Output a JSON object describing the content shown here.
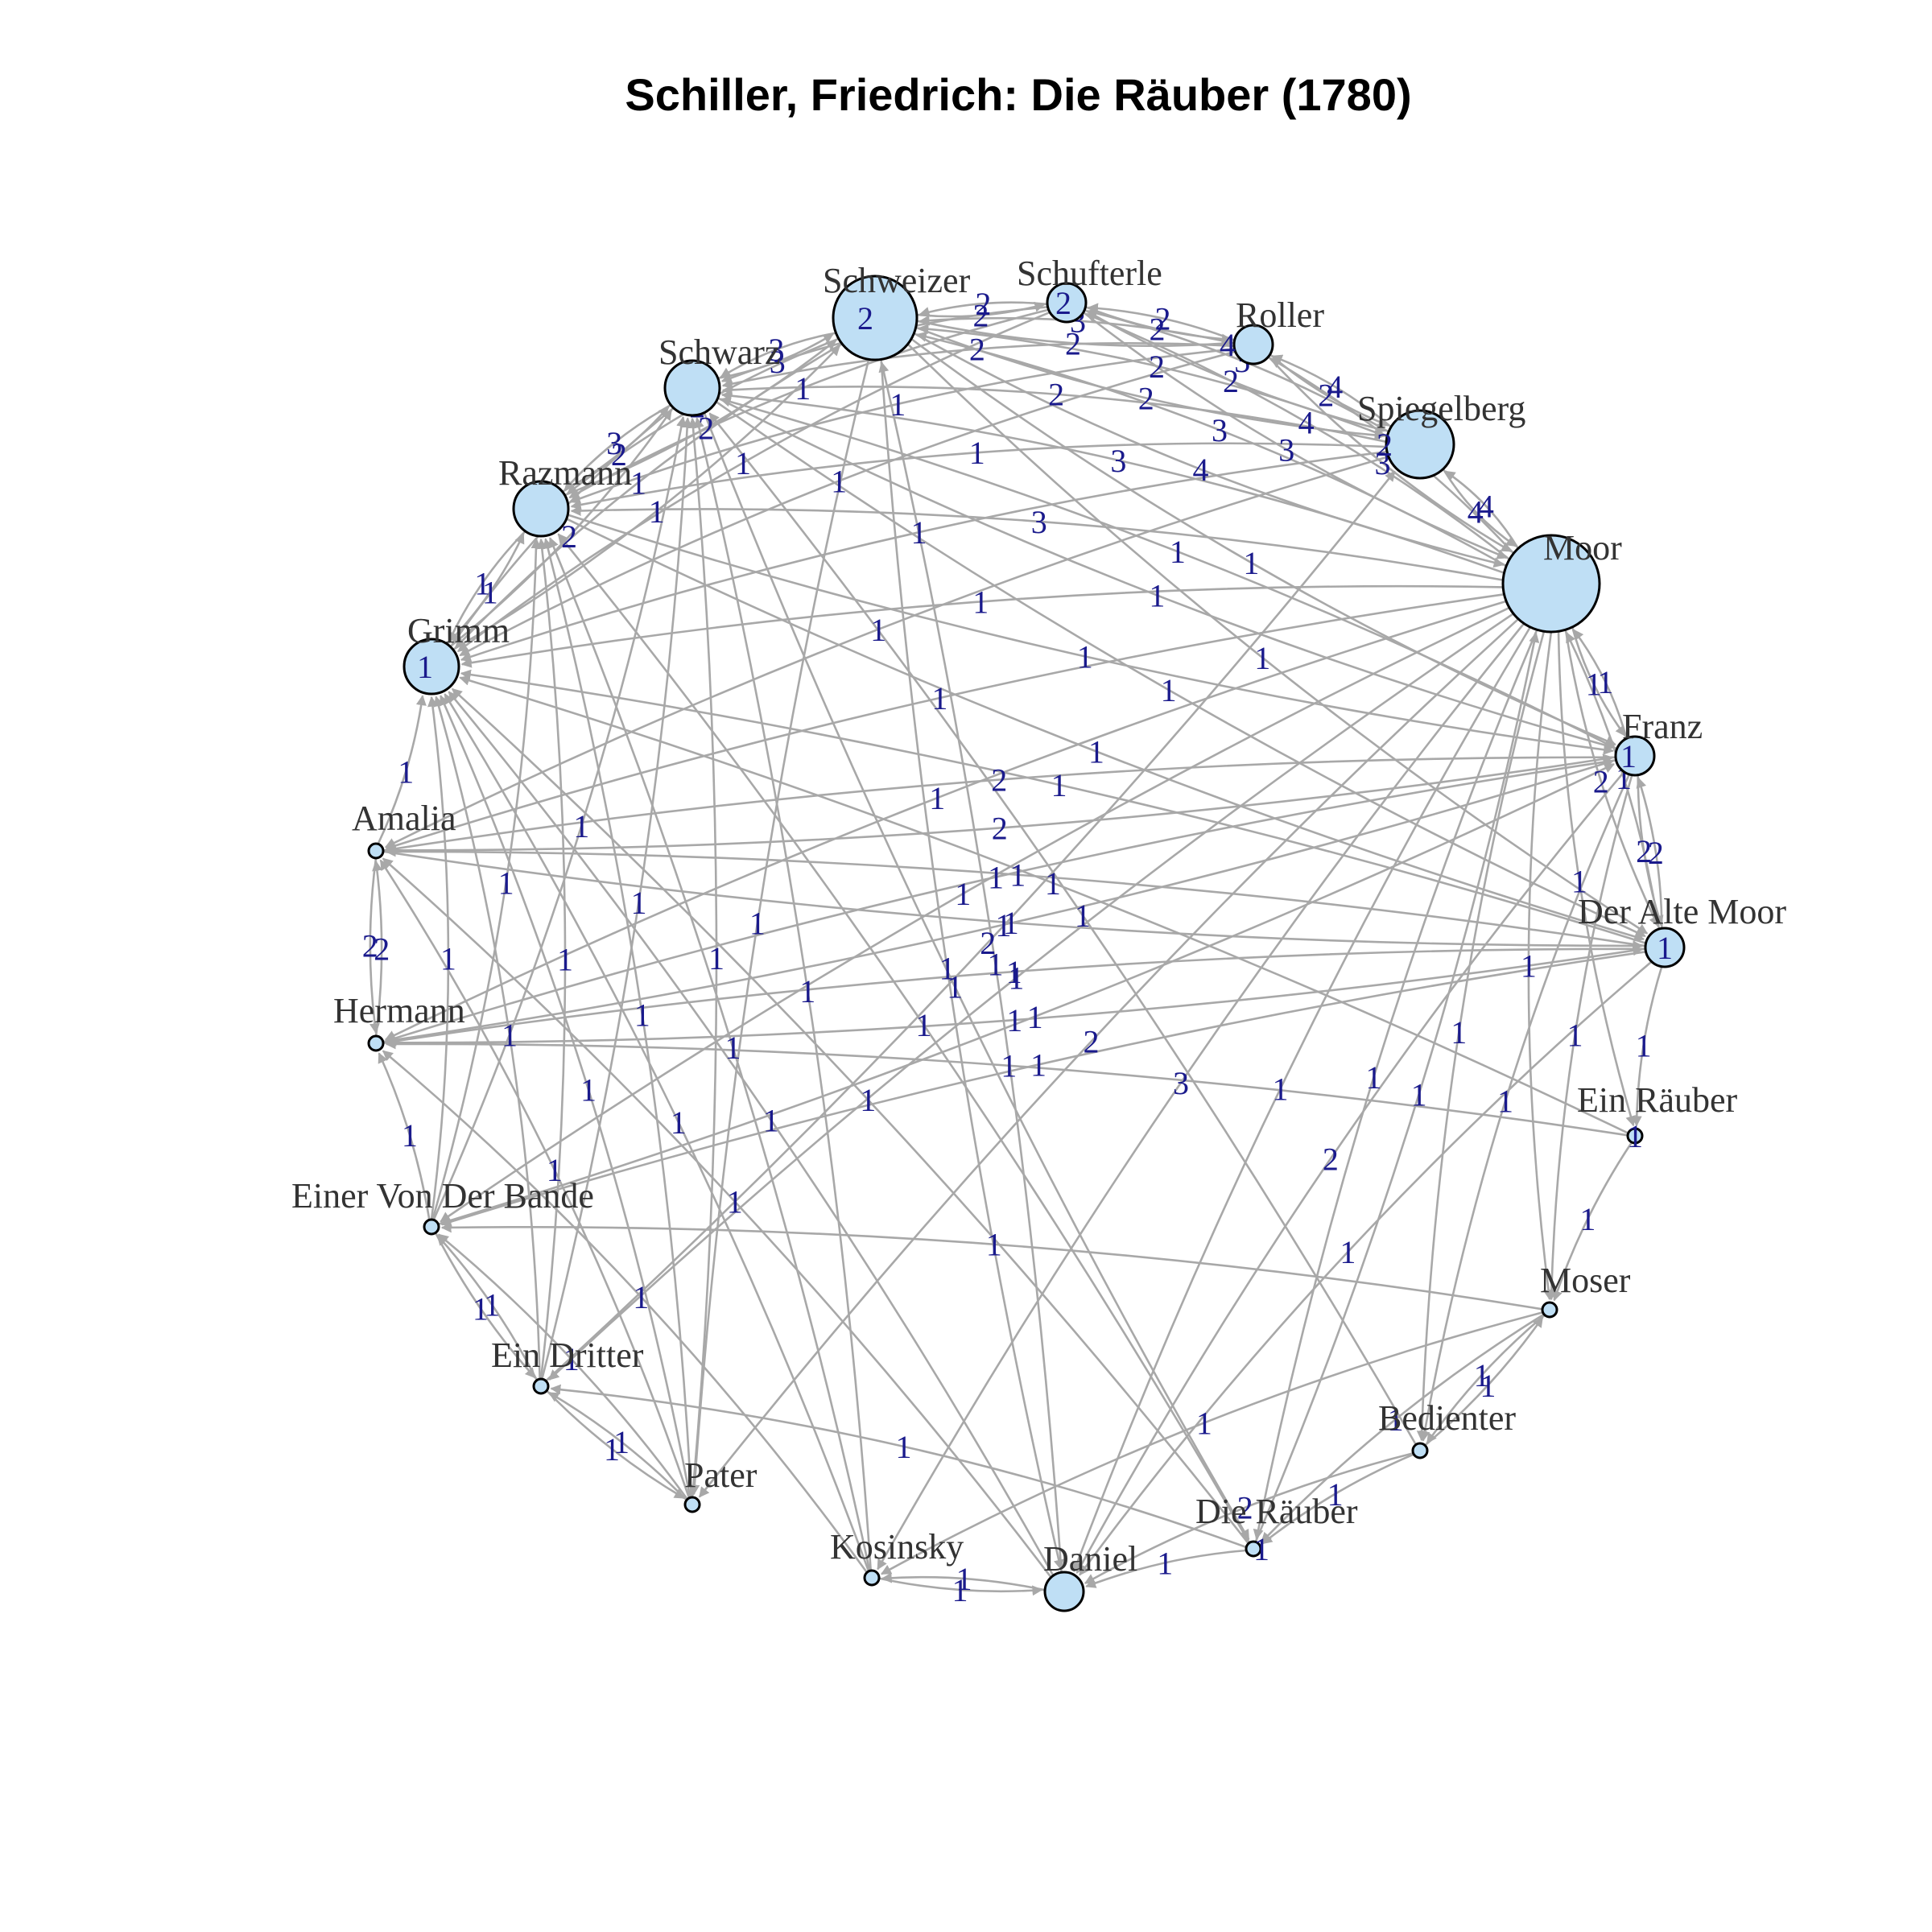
{
  "title": "Schiller, Friedrich: Die Räuber (1780)",
  "colors": {
    "node_fill": "#bfdff5",
    "edge": "#a8a8a8",
    "edge_label": "#1a1a8c"
  },
  "nodes": [
    {
      "id": "schweizer",
      "label": "Schweizer",
      "size": 5,
      "self": "2"
    },
    {
      "id": "schufterle",
      "label": "Schufterle",
      "size": 2,
      "self": "2"
    },
    {
      "id": "roller",
      "label": "Roller",
      "size": 2,
      "self": "4"
    },
    {
      "id": "spiegelberg",
      "label": "Spiegelberg",
      "size": 4,
      "self": "2"
    },
    {
      "id": "moor",
      "label": "Moor",
      "size": 6
    },
    {
      "id": "franz",
      "label": "Franz",
      "size": 2,
      "self": "1"
    },
    {
      "id": "alte_moor",
      "label": "Der Alte Moor",
      "size": 2,
      "self": "1"
    },
    {
      "id": "ein_raeuber",
      "label": "Ein Räuber",
      "size": 1,
      "self": "1"
    },
    {
      "id": "moser",
      "label": "Moser",
      "size": 1
    },
    {
      "id": "bedienter",
      "label": "Bedienter",
      "size": 1
    },
    {
      "id": "die_raeuber",
      "label": "Die Räuber",
      "size": 1,
      "self": "1"
    },
    {
      "id": "daniel",
      "label": "Daniel",
      "size": 2
    },
    {
      "id": "kosinsky",
      "label": "Kosinsky",
      "size": 1
    },
    {
      "id": "pater",
      "label": "Pater",
      "size": 1
    },
    {
      "id": "ein_dritter",
      "label": "Ein Dritter",
      "size": 1
    },
    {
      "id": "einer_bande",
      "label": "Einer Von Der Bande",
      "size": 1
    },
    {
      "id": "hermann",
      "label": "Hermann",
      "size": 1
    },
    {
      "id": "amalia",
      "label": "Amalia",
      "size": 1
    },
    {
      "id": "grimm",
      "label": "Grimm",
      "size": 3,
      "self": "1"
    },
    {
      "id": "razmann",
      "label": "Razmann",
      "size": 3
    },
    {
      "id": "schwarz",
      "label": "Schwarz",
      "size": 3
    }
  ],
  "edges": [
    [
      "schweizer",
      "schufterle",
      "2"
    ],
    [
      "schufterle",
      "schweizer",
      "2"
    ],
    [
      "schweizer",
      "roller",
      "2"
    ],
    [
      "roller",
      "schweizer",
      "3"
    ],
    [
      "schweizer",
      "spiegelberg",
      "2"
    ],
    [
      "spiegelberg",
      "schweizer",
      "2"
    ],
    [
      "schweizer",
      "moor",
      "4"
    ],
    [
      "moor",
      "schweizer",
      "3"
    ],
    [
      "schweizer",
      "schwarz",
      "3"
    ],
    [
      "schwarz",
      "schweizer",
      "3"
    ],
    [
      "schweizer",
      "razmann",
      "2"
    ],
    [
      "razmann",
      "schweizer",
      "2"
    ],
    [
      "schweizer",
      "grimm",
      "1"
    ],
    [
      "grimm",
      "schweizer",
      "1"
    ],
    [
      "schweizer",
      "franz",
      "1"
    ],
    [
      "schweizer",
      "alte_moor",
      "1"
    ],
    [
      "schweizer",
      "daniel",
      "1"
    ],
    [
      "schweizer",
      "pater",
      "1"
    ],
    [
      "schufterle",
      "roller",
      "2"
    ],
    [
      "roller",
      "schufterle",
      "2"
    ],
    [
      "schufterle",
      "spiegelberg",
      "2"
    ],
    [
      "spiegelberg",
      "schufterle",
      "3"
    ],
    [
      "schufterle",
      "moor",
      "3"
    ],
    [
      "moor",
      "schufterle",
      "4"
    ],
    [
      "schufterle",
      "schwarz",
      "2"
    ],
    [
      "schufterle",
      "razmann",
      "1"
    ],
    [
      "schufterle",
      "grimm",
      "1"
    ],
    [
      "roller",
      "spiegelberg",
      "2"
    ],
    [
      "spiegelberg",
      "roller",
      "4"
    ],
    [
      "roller",
      "moor",
      "3"
    ],
    [
      "moor",
      "roller",
      "3"
    ],
    [
      "roller",
      "schwarz",
      "2"
    ],
    [
      "roller",
      "razmann",
      "1"
    ],
    [
      "roller",
      "grimm",
      "1"
    ],
    [
      "spiegelberg",
      "moor",
      "4"
    ],
    [
      "moor",
      "spiegelberg",
      "4"
    ],
    [
      "spiegelberg",
      "schwarz",
      "2"
    ],
    [
      "spiegelberg",
      "razmann",
      "1"
    ],
    [
      "spiegelberg",
      "grimm",
      "1"
    ],
    [
      "spiegelberg",
      "amalia",
      "1"
    ],
    [
      "moor",
      "franz",
      "1"
    ],
    [
      "franz",
      "moor",
      "1"
    ],
    [
      "moor",
      "alte_moor",
      "2"
    ],
    [
      "alte_moor",
      "moor",
      "1"
    ],
    [
      "moor",
      "schwarz",
      "3"
    ],
    [
      "moor",
      "razmann",
      "3"
    ],
    [
      "moor",
      "grimm",
      "1"
    ],
    [
      "moor",
      "amalia",
      "1"
    ],
    [
      "moor",
      "hermann",
      "1"
    ],
    [
      "moor",
      "kosinsky",
      "3"
    ],
    [
      "moor",
      "pater",
      "2"
    ],
    [
      "moor",
      "daniel",
      "1"
    ],
    [
      "moor",
      "die_raeuber",
      "1"
    ],
    [
      "moor",
      "einer_bande",
      "1"
    ],
    [
      "moor",
      "ein_dritter",
      "1"
    ],
    [
      "moor",
      "ein_raeuber",
      "1"
    ],
    [
      "moor",
      "moser",
      "1"
    ],
    [
      "moor",
      "bedienter",
      "1"
    ],
    [
      "franz",
      "alte_moor",
      "2"
    ],
    [
      "alte_moor",
      "franz",
      "2"
    ],
    [
      "franz",
      "amalia",
      "2"
    ],
    [
      "franz",
      "hermann",
      "1"
    ],
    [
      "franz",
      "daniel",
      "2"
    ],
    [
      "franz",
      "moser",
      "1"
    ],
    [
      "franz",
      "bedienter",
      "1"
    ],
    [
      "franz",
      "schwarz",
      "1"
    ],
    [
      "alte_moor",
      "amalia",
      "1"
    ],
    [
      "alte_moor",
      "hermann",
      "1"
    ],
    [
      "alte_moor",
      "ein_raeuber",
      "1"
    ],
    [
      "alte_moor",
      "daniel",
      "1"
    ],
    [
      "alte_moor",
      "grimm",
      "1"
    ],
    [
      "alte_moor",
      "einer_bande",
      "1"
    ],
    [
      "ein_raeuber",
      "moser",
      "1"
    ],
    [
      "ein_raeuber",
      "grimm",
      "1"
    ],
    [
      "ein_raeuber",
      "hermann",
      "1"
    ],
    [
      "moser",
      "bedienter",
      "1"
    ],
    [
      "bedienter",
      "moser",
      "1"
    ],
    [
      "moser",
      "die_raeuber",
      "1"
    ],
    [
      "moser",
      "einer_bande",
      "1"
    ],
    [
      "moser",
      "kosinsky",
      "1"
    ],
    [
      "bedienter",
      "die_raeuber",
      "1"
    ],
    [
      "bedienter",
      "daniel",
      "2"
    ],
    [
      "bedienter",
      "schwarz",
      "1"
    ],
    [
      "die_raeuber",
      "daniel",
      "1"
    ],
    [
      "die_raeuber",
      "grimm",
      "1"
    ],
    [
      "die_raeuber",
      "razmann",
      "1"
    ],
    [
      "die_raeuber",
      "ein_dritter",
      "1"
    ],
    [
      "die_raeuber",
      "moor",
      "1"
    ],
    [
      "daniel",
      "kosinsky",
      "1"
    ],
    [
      "kosinsky",
      "daniel",
      "1"
    ],
    [
      "daniel",
      "amalia",
      "1"
    ],
    [
      "daniel",
      "grimm",
      "1"
    ],
    [
      "daniel",
      "schweizer",
      "1"
    ],
    [
      "kosinsky",
      "grimm",
      "1"
    ],
    [
      "kosinsky",
      "razmann",
      "1"
    ],
    [
      "kosinsky",
      "hermann",
      "1"
    ],
    [
      "kosinsky",
      "schwarz",
      "1"
    ],
    [
      "pater",
      "ein_dritter",
      "1"
    ],
    [
      "ein_dritter",
      "pater",
      "1"
    ],
    [
      "pater",
      "einer_bande",
      "1"
    ],
    [
      "pater",
      "grimm",
      "1"
    ],
    [
      "pater",
      "razmann",
      "1"
    ],
    [
      "pater",
      "schwarz",
      "1"
    ],
    [
      "pater",
      "amalia",
      "1"
    ],
    [
      "ein_dritter",
      "einer_bande",
      "1"
    ],
    [
      "einer_bande",
      "ein_dritter",
      "1"
    ],
    [
      "ein_dritter",
      "grimm",
      "1"
    ],
    [
      "ein_dritter",
      "razmann",
      "1"
    ],
    [
      "ein_dritter",
      "schwarz",
      "1"
    ],
    [
      "ein_dritter",
      "spiegelberg",
      "2"
    ],
    [
      "einer_bande",
      "grimm",
      "1"
    ],
    [
      "einer_bande",
      "razmann",
      "1"
    ],
    [
      "einer_bande",
      "schwarz",
      "1"
    ],
    [
      "einer_bande",
      "hermann",
      "1"
    ],
    [
      "einer_bande",
      "franz",
      "1"
    ],
    [
      "hermann",
      "amalia",
      "2"
    ],
    [
      "amalia",
      "hermann",
      "2"
    ],
    [
      "hermann",
      "alte_moor",
      "1"
    ],
    [
      "hermann",
      "franz",
      "1"
    ],
    [
      "amalia",
      "grimm",
      "1"
    ],
    [
      "amalia",
      "franz",
      "2"
    ],
    [
      "amalia",
      "alte_moor",
      "1"
    ],
    [
      "grimm",
      "razmann",
      "1"
    ],
    [
      "razmann",
      "grimm",
      "1"
    ],
    [
      "grimm",
      "schwarz",
      "2"
    ],
    [
      "schwarz",
      "grimm",
      "1"
    ],
    [
      "razmann",
      "schwarz",
      "2"
    ],
    [
      "schwarz",
      "razmann",
      "3"
    ],
    [
      "razmann",
      "franz",
      "1"
    ],
    [
      "razmann",
      "alte_moor",
      "1"
    ],
    [
      "schwarz",
      "franz",
      "1"
    ],
    [
      "schwarz",
      "alte_moor",
      "1"
    ],
    [
      "schwarz",
      "die_raeuber",
      "1"
    ]
  ]
}
